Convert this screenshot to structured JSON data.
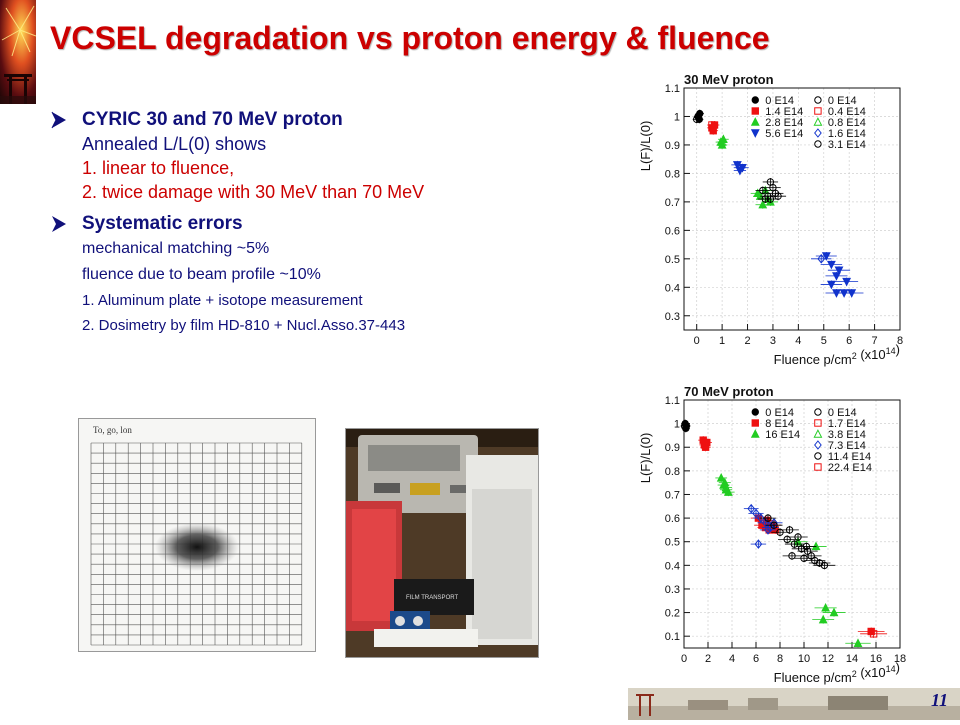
{
  "slide": {
    "title": "VCSEL degradation vs proton energy & fluence",
    "page_number": "11"
  },
  "bullets": [
    {
      "heading": "CYRIC 30 and 70 MeV proton",
      "lines": [
        "Annealed L/L(0) shows",
        "1. linear to fluence,",
        "2. twice damage with 30 MeV  than 70 MeV"
      ]
    },
    {
      "heading": "Systematic errors",
      "lines": [
        "mechanical matching ~5%",
        "fluence due to beam profile ~10%",
        "1. Aluminum plate + isotope measurement",
        "2. Dosimetry by film HD-810 + Nucl.Asso.37-443"
      ]
    }
  ],
  "photos": {
    "grid_film_header": "To, go, lon",
    "device_label": "FILM TRANSPORT"
  },
  "chart_data": [
    {
      "type": "scatter",
      "title": "30 MeV proton",
      "xlabel": "Fluence p/cm2 (x10^14)",
      "xlabel_main": "Fluence p/cm",
      "xlabel_exp": "2",
      "xlabel_tail": " (x10",
      "xlabel_exp2": "14",
      "xlabel_end": ")",
      "ylabel": "L(F)/L(0)",
      "xlim": [
        -0.5,
        8
      ],
      "ylim": [
        0.25,
        1.1
      ],
      "xticks": [
        0,
        1,
        2,
        3,
        4,
        5,
        6,
        7,
        8
      ],
      "yticks": [
        0.3,
        0.4,
        0.5,
        0.6,
        0.7,
        0.8,
        0.9,
        1.0,
        1.1
      ],
      "ytick_labels": [
        "0.3",
        "0.4",
        "0.5",
        "0.6",
        "0.7",
        "0.8",
        "0.9",
        "1",
        "1.1"
      ],
      "grid": true,
      "legend_position": "top-right",
      "series": [
        {
          "name": "0 E14",
          "color": "#000000",
          "marker": "circle",
          "filled": true,
          "points": [
            [
              0.05,
              1.0
            ],
            [
              0.1,
              0.99
            ],
            [
              0.12,
              1.01
            ]
          ]
        },
        {
          "name": "1.4 E14",
          "color": "#ee1111",
          "marker": "square",
          "filled": true,
          "points": [
            [
              0.6,
              0.96
            ],
            [
              0.65,
              0.95
            ],
            [
              0.7,
              0.97
            ]
          ]
        },
        {
          "name": "2.8 E14",
          "color": "#22cc22",
          "marker": "triangle-up",
          "filled": true,
          "points": [
            [
              0.95,
              0.91
            ],
            [
              1.0,
              0.9
            ],
            [
              1.05,
              0.92
            ],
            [
              2.4,
              0.73
            ],
            [
              2.5,
              0.72
            ],
            [
              2.6,
              0.69
            ],
            [
              2.7,
              0.74
            ],
            [
              2.8,
              0.71
            ],
            [
              2.9,
              0.7
            ]
          ]
        },
        {
          "name": "5.6 E14",
          "color": "#1133cc",
          "marker": "triangle-down",
          "filled": true,
          "points": [
            [
              1.6,
              0.83
            ],
            [
              1.7,
              0.81
            ],
            [
              1.8,
              0.82
            ],
            [
              5.1,
              0.51
            ],
            [
              5.3,
              0.48
            ],
            [
              5.5,
              0.44
            ],
            [
              5.6,
              0.46
            ],
            [
              5.3,
              0.41
            ],
            [
              5.5,
              0.38
            ],
            [
              5.8,
              0.38
            ],
            [
              6.1,
              0.38
            ],
            [
              5.9,
              0.42
            ]
          ]
        },
        {
          "name": "0 E14",
          "color": "#000000",
          "marker": "circle",
          "filled": false,
          "points": [
            [
              0.0,
              0.99
            ]
          ]
        },
        {
          "name": "0.4 E14",
          "color": "#ee1111",
          "marker": "square",
          "filled": false,
          "points": [
            [
              0.6,
              0.97
            ]
          ]
        },
        {
          "name": "0.8 E14",
          "color": "#22cc22",
          "marker": "triangle-up",
          "filled": false,
          "points": [
            [
              1.0,
              0.91
            ]
          ]
        },
        {
          "name": "1.6 E14",
          "color": "#1133cc",
          "marker": "diamond",
          "filled": false,
          "points": [
            [
              1.7,
              0.82
            ],
            [
              4.9,
              0.5
            ]
          ]
        },
        {
          "name": "3.1 E14",
          "color": "#000000",
          "marker": "circle",
          "filled": false,
          "points": [
            [
              2.6,
              0.74
            ],
            [
              2.8,
              0.72
            ],
            [
              2.9,
              0.77
            ],
            [
              3.0,
              0.75
            ],
            [
              3.1,
              0.73
            ],
            [
              2.7,
              0.71
            ],
            [
              3.2,
              0.72
            ],
            [
              2.9,
              0.71
            ]
          ]
        }
      ]
    },
    {
      "type": "scatter",
      "title": "70 MeV proton",
      "xlabel": "Fluence p/cm2 (x10^14)",
      "xlabel_main": "Fluence p/cm",
      "xlabel_exp": "2",
      "xlabel_tail": " (x10",
      "xlabel_exp2": "14",
      "xlabel_end": ")",
      "ylabel": "L(F)/L(0)",
      "xlim": [
        0,
        18
      ],
      "ylim": [
        0.05,
        1.1
      ],
      "xticks": [
        0,
        2,
        4,
        6,
        8,
        10,
        12,
        14,
        16,
        18
      ],
      "yticks": [
        0.1,
        0.2,
        0.3,
        0.4,
        0.5,
        0.6,
        0.7,
        0.8,
        0.9,
        1.0,
        1.1
      ],
      "ytick_labels": [
        "0.1",
        "0.2",
        "0.3",
        "0.4",
        "0.5",
        "0.6",
        "0.7",
        "0.8",
        "0.9",
        "1",
        "1.1"
      ],
      "grid": true,
      "legend_position": "top-right",
      "series": [
        {
          "name": "0 E14",
          "color": "#000000",
          "marker": "circle",
          "filled": true,
          "points": [
            [
              0.1,
              1.0
            ],
            [
              0.15,
              0.98
            ],
            [
              0.2,
              0.99
            ]
          ]
        },
        {
          "name": "8 E14",
          "color": "#ee1111",
          "marker": "square",
          "filled": true,
          "points": [
            [
              1.6,
              0.93
            ],
            [
              1.7,
              0.91
            ],
            [
              1.8,
              0.9
            ],
            [
              1.9,
              0.92
            ],
            [
              6.2,
              0.6
            ],
            [
              6.5,
              0.57
            ],
            [
              6.8,
              0.56
            ],
            [
              7.1,
              0.55
            ],
            [
              7.4,
              0.57
            ],
            [
              7.6,
              0.55
            ],
            [
              6.9,
              0.59
            ],
            [
              15.6,
              0.12
            ]
          ]
        },
        {
          "name": "16 E14",
          "color": "#22cc22",
          "marker": "triangle-up",
          "filled": true,
          "points": [
            [
              3.1,
              0.77
            ],
            [
              3.3,
              0.74
            ],
            [
              3.5,
              0.72
            ],
            [
              3.7,
              0.71
            ],
            [
              3.4,
              0.75
            ],
            [
              9.5,
              0.5
            ],
            [
              11.0,
              0.48
            ],
            [
              11.8,
              0.22
            ],
            [
              12.5,
              0.2
            ],
            [
              11.6,
              0.17
            ],
            [
              14.5,
              0.07
            ]
          ]
        },
        {
          "name": "0 E14",
          "color": "#000000",
          "marker": "circle",
          "filled": false,
          "points": [
            [
              0.05,
              0.99
            ]
          ]
        },
        {
          "name": "1.7 E14",
          "color": "#ee1111",
          "marker": "square",
          "filled": false,
          "points": [
            [
              1.75,
              0.92
            ]
          ]
        },
        {
          "name": "3.8 E14",
          "color": "#22cc22",
          "marker": "triangle-up",
          "filled": false,
          "points": [
            [
              3.5,
              0.73
            ]
          ]
        },
        {
          "name": "7.3 E14",
          "color": "#1133cc",
          "marker": "diamond",
          "filled": false,
          "points": [
            [
              5.6,
              0.64
            ],
            [
              6.0,
              0.62
            ],
            [
              6.4,
              0.6
            ],
            [
              6.8,
              0.58
            ],
            [
              7.2,
              0.56
            ],
            [
              7.5,
              0.58
            ],
            [
              6.2,
              0.49
            ],
            [
              7.0,
              0.55
            ]
          ]
        },
        {
          "name": "11.4 E14",
          "color": "#000000",
          "marker": "circle",
          "filled": false,
          "points": [
            [
              7.0,
              0.6
            ],
            [
              7.5,
              0.57
            ],
            [
              8.0,
              0.54
            ],
            [
              8.6,
              0.51
            ],
            [
              9.2,
              0.49
            ],
            [
              9.8,
              0.47
            ],
            [
              10.3,
              0.46
            ],
            [
              10.6,
              0.44
            ],
            [
              10.9,
              0.42
            ],
            [
              11.3,
              0.41
            ],
            [
              11.7,
              0.4
            ],
            [
              9.0,
              0.44
            ],
            [
              10.0,
              0.43
            ],
            [
              8.8,
              0.55
            ],
            [
              9.5,
              0.52
            ],
            [
              10.2,
              0.48
            ]
          ]
        },
        {
          "name": "22.4 E14",
          "color": "#ee1111",
          "marker": "square",
          "filled": false,
          "points": [
            [
              15.8,
              0.11
            ]
          ]
        }
      ]
    }
  ]
}
